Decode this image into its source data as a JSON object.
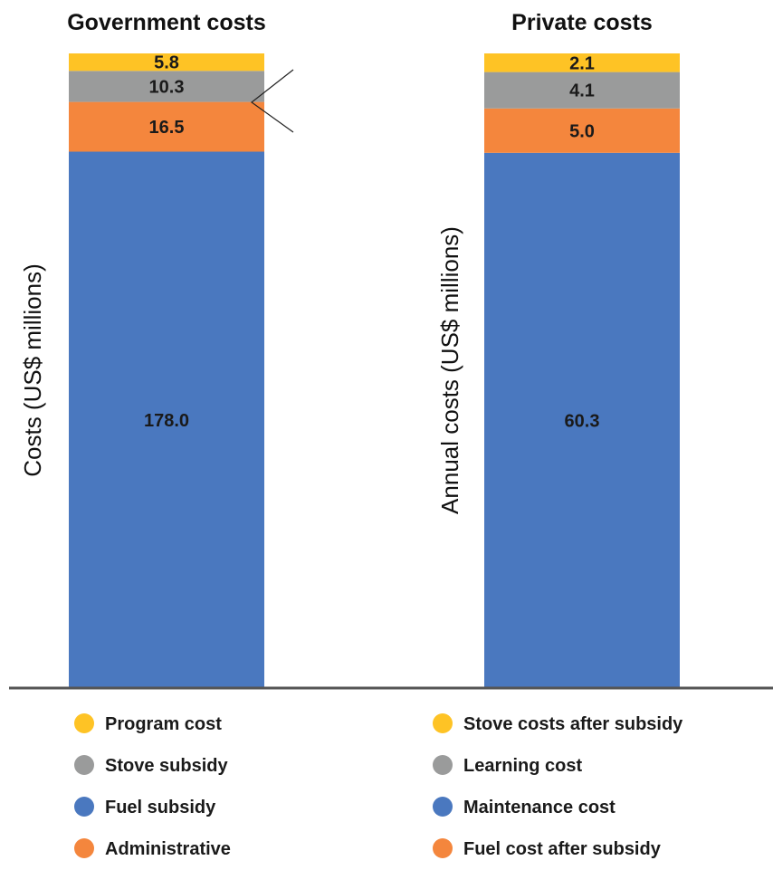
{
  "chart_data": [
    {
      "type": "bar",
      "stacked": true,
      "title": "Government costs",
      "ylabel": "Costs (US$ millions)",
      "ylim": [
        0,
        235
      ],
      "grid": false,
      "callout": true,
      "segments": [
        {
          "name": "Fuel subsidy",
          "value": 178.0,
          "label": "178.0",
          "color": "#4a78bf"
        },
        {
          "name": "Administrative",
          "value": 16.5,
          "label": "16.5",
          "color": "#f4863d"
        },
        {
          "name": "Stove subsidy",
          "value": 10.3,
          "label": "10.3",
          "color": "#9a9b9b"
        },
        {
          "name": "Program cost",
          "value": 5.8,
          "label": "5.8",
          "color": "#fec325"
        }
      ],
      "legend": [
        {
          "label": "Program cost",
          "color": "#fec325"
        },
        {
          "label": "Stove subsidy",
          "color": "#9a9b9b"
        },
        {
          "label": "Fuel subsidy",
          "color": "#4a78bf"
        },
        {
          "label": "Administrative",
          "color": "#f4863d"
        }
      ]
    },
    {
      "type": "bar",
      "stacked": true,
      "title": "Private costs",
      "ylabel": "Annual costs (US$ millions)",
      "ylim": [
        0,
        80
      ],
      "grid": false,
      "segments": [
        {
          "name": "Maintenance cost",
          "value": 60.3,
          "label": "60.3",
          "color": "#4a78bf"
        },
        {
          "name": "Fuel cost after subsidy",
          "value": 5.0,
          "label": "5.0",
          "color": "#f4863d"
        },
        {
          "name": "Learning cost",
          "value": 4.1,
          "label": "4.1",
          "color": "#9a9b9b"
        },
        {
          "name": "Stove costs after subsidy",
          "value": 2.1,
          "label": "2.1",
          "color": "#fec325"
        }
      ],
      "legend": [
        {
          "label": "Stove costs after subsidy",
          "color": "#fec325"
        },
        {
          "label": "Learning cost",
          "color": "#9a9b9b"
        },
        {
          "label": "Maintenance cost",
          "color": "#4a78bf"
        },
        {
          "label": "Fuel cost after subsidy",
          "color": "#f4863d"
        }
      ]
    }
  ]
}
